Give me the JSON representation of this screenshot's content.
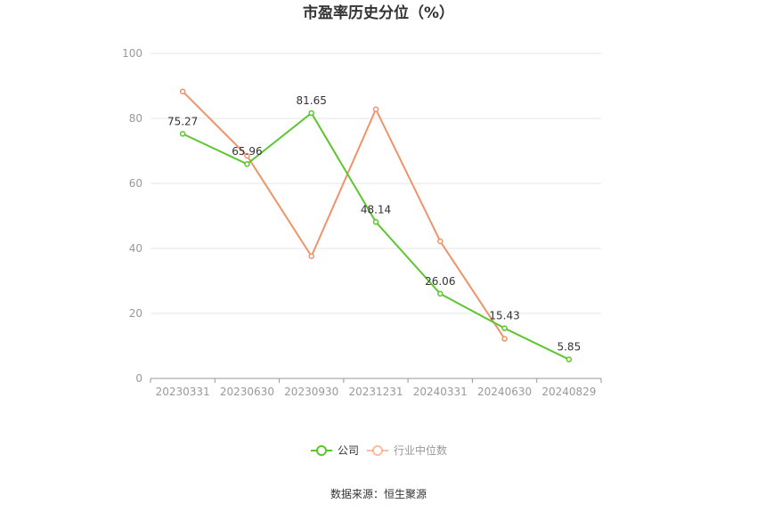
{
  "chart_data": {
    "type": "line",
    "title": "市盈率历史分位（%）",
    "categories": [
      "20230331",
      "20230630",
      "20230930",
      "20231231",
      "20240331",
      "20240630",
      "20240829"
    ],
    "series": [
      {
        "name": "公司",
        "color": "#5cc52f",
        "values": [
          75.27,
          65.96,
          81.65,
          48.14,
          26.06,
          15.43,
          5.85
        ],
        "labels": [
          "75.27",
          "65.96",
          "81.65",
          "48.14",
          "26.06",
          "15.43",
          "5.85"
        ]
      },
      {
        "name": "行业中位数",
        "color": "#f0936b",
        "values": [
          88.3,
          68.5,
          37.6,
          82.8,
          42.2,
          12.2,
          null
        ]
      }
    ],
    "y_ticks": [
      "0",
      "20",
      "40",
      "60",
      "80",
      "100"
    ],
    "ylim": [
      0,
      100
    ],
    "grid": true,
    "legend_position": "bottom-center",
    "source": "数据来源：恒生聚源"
  }
}
